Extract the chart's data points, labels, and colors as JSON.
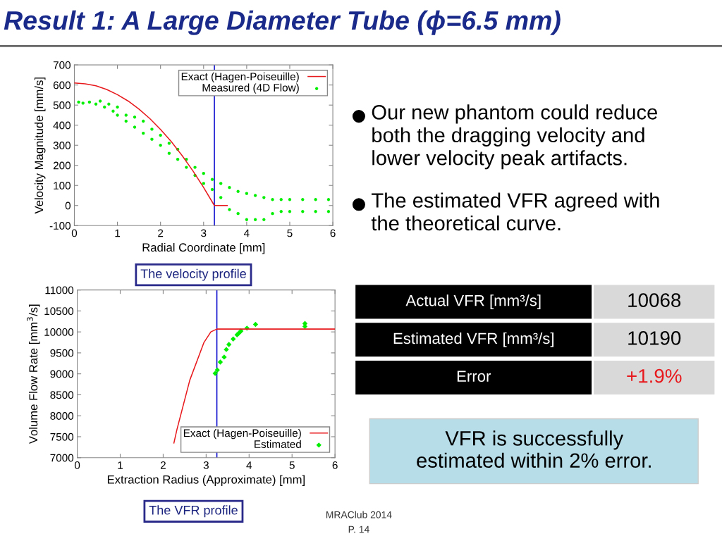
{
  "chart_data": [
    {
      "type": "scatter",
      "xlabel": "Radial Coordinate [mm]",
      "ylabel": "Velocity Magnitude [mm/s]",
      "xlim": [
        0,
        6
      ],
      "ylim": [
        -100,
        700
      ],
      "xticks": [
        0,
        1,
        2,
        3,
        4,
        5,
        6
      ],
      "yticks": [
        -100,
        0,
        100,
        200,
        300,
        400,
        500,
        600,
        700
      ],
      "grid": false,
      "legend": "top right",
      "ref_lines": [
        {
          "axis": "x",
          "value": 3.25,
          "color": "#0000cc"
        }
      ],
      "annotations": [
        "The velocity profile"
      ],
      "series": [
        {
          "name": "Exact (Hagen-Poiseuille)",
          "type": "line",
          "color": "#e8191c",
          "marker": "none",
          "x": [
            0,
            0.25,
            0.5,
            0.75,
            1,
            1.25,
            1.5,
            1.75,
            2,
            2.25,
            2.5,
            2.75,
            3,
            3.25,
            3.55
          ],
          "values": [
            610,
            606,
            596,
            578,
            552,
            520,
            480,
            433,
            379,
            318,
            249,
            173,
            90,
            0,
            0
          ]
        },
        {
          "name": "Measured (4D Flow)",
          "type": "scatter",
          "color": "#00ee00",
          "marker": "circle",
          "x": [
            0.1,
            0.2,
            0.35,
            0.5,
            0.6,
            0.7,
            0.8,
            0.9,
            1.0,
            1.0,
            1.2,
            1.2,
            1.4,
            1.4,
            1.6,
            1.6,
            1.8,
            1.8,
            2.0,
            2.0,
            2.2,
            2.2,
            2.4,
            2.4,
            2.6,
            2.6,
            2.8,
            2.8,
            3.0,
            3.0,
            3.2,
            3.2,
            3.4,
            3.4,
            3.6,
            3.6,
            3.8,
            3.8,
            4.0,
            4.0,
            4.2,
            4.2,
            4.4,
            4.4,
            4.6,
            4.6,
            4.8,
            4.8,
            5.0,
            5.0,
            5.3,
            5.3,
            5.6,
            5.6,
            5.9,
            5.9
          ],
          "values": [
            515,
            510,
            515,
            505,
            520,
            490,
            505,
            470,
            490,
            450,
            450,
            420,
            440,
            390,
            420,
            360,
            380,
            330,
            350,
            300,
            310,
            260,
            280,
            230,
            230,
            190,
            190,
            150,
            160,
            110,
            130,
            80,
            110,
            40,
            90,
            -20,
            70,
            -40,
            60,
            -70,
            50,
            -70,
            40,
            -70,
            30,
            -40,
            30,
            -30,
            30,
            -30,
            30,
            -30,
            30,
            -30,
            30,
            -30
          ]
        }
      ]
    },
    {
      "type": "line",
      "xlabel": "Extraction Radius (Approximate) [mm]",
      "ylabel": "Volume Flow Rate [mm$^{3}$/s]",
      "xlim": [
        0,
        6
      ],
      "ylim": [
        7000,
        11000
      ],
      "xticks": [
        0,
        1,
        2,
        3,
        4,
        5,
        6
      ],
      "yticks": [
        7000,
        7500,
        8000,
        8500,
        9000,
        9500,
        10000,
        10500,
        11000
      ],
      "grid": false,
      "legend": "bottom right",
      "ref_lines": [
        {
          "axis": "x",
          "value": 3.25,
          "color": "#0000cc"
        }
      ],
      "annotations": [
        "The VFR profile"
      ],
      "series": [
        {
          "name": "Exact (Hagen-Poiseuille)",
          "type": "line",
          "color": "#e8191c",
          "marker": "none",
          "x": [
            2.25,
            2.32,
            2.62,
            2.95,
            3.11,
            3.25,
            6
          ],
          "values": [
            7350,
            7670,
            8850,
            9750,
            10000,
            10068,
            10068
          ]
        },
        {
          "name": "Estimated",
          "type": "scatter",
          "color": "#00ee00",
          "marker": "diamond",
          "x": [
            3.21,
            3.26,
            3.33,
            3.42,
            3.47,
            3.53,
            3.63,
            3.72,
            3.76,
            3.81,
            3.95,
            4.15,
            5.3,
            5.3
          ],
          "values": [
            9010,
            9090,
            9280,
            9400,
            9580,
            9700,
            9830,
            9930,
            9970,
            10020,
            10090,
            10180,
            10200,
            10130
          ]
        }
      ]
    },
    {
      "type": "other",
      "title": "Result 1: A Large Diameter Tube (ϕ=6.5 mm)",
      "annotations": [
        "Our new phantom could reduce\nboth the dragging velocity and\nlower velocity peak artifacts.",
        "The estimated VFR agreed with\nthe theoretical curve.",
        "Actual VFR [mm³/s]",
        "10068",
        "Estimated VFR [mm³/s]",
        "10190",
        "Error",
        "+1.9%",
        "VFR is successfully\nestimated within 2% error.",
        "MRAClub 2014",
        "P. 14"
      ]
    }
  ]
}
